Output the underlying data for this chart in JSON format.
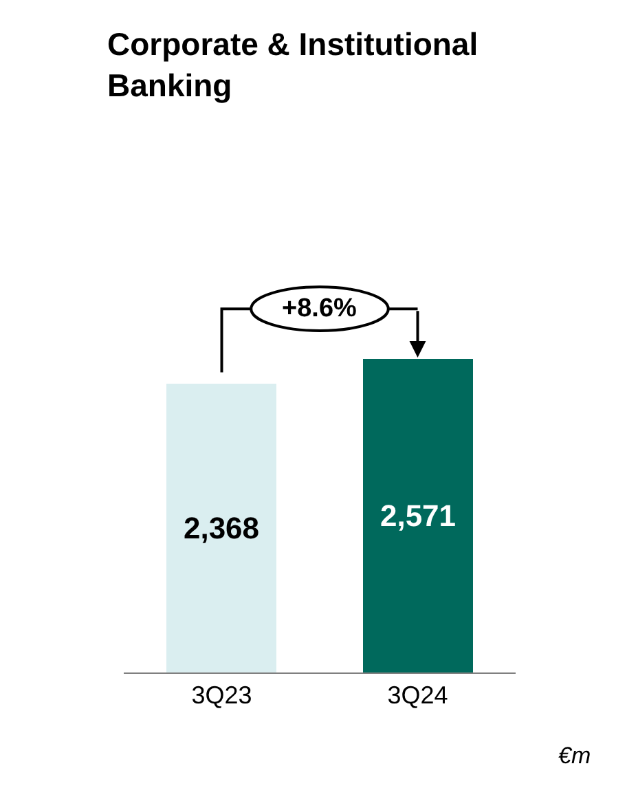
{
  "chart_data": {
    "type": "bar",
    "title": "Corporate & Institutional Banking",
    "categories": [
      "3Q23",
      "3Q24"
    ],
    "values": [
      2368,
      2571
    ],
    "colors": [
      "#daeef0",
      "#00695c"
    ],
    "data_labels": true,
    "value_labels": [
      "2,368",
      "2,571"
    ],
    "annotations": [
      "+8.6%",
      "€m"
    ]
  }
}
